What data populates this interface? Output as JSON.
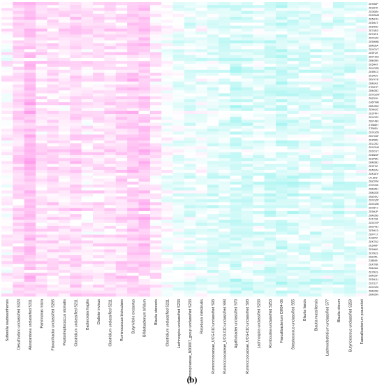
{
  "panel_label": "(b)",
  "chart_data": {
    "type": "heatmap",
    "colormap": {
      "low": "#3ee8e0",
      "mid": "#ffffff",
      "high": "#ff5fe0"
    },
    "columns": [
      "Sutterella wadsworthensis",
      "Desulfovibrio unclassified S323",
      "Alloscardovia unclassified S311",
      "Parvimonas micra",
      "Flavonifractor unclassified S265",
      "Peptostreptococcus stomatis",
      "Clostridium unclassified S211",
      "Bacteroides fragilis",
      "Dialister invisus",
      "Clostridium unclassified S211",
      "Ruminococcus bicirculans",
      "Butyrivibrio crossotus",
      "Bifidobacterium bifidum",
      "Blautia stercoris",
      "Clostridium unclassified S211",
      "Lachnospira unclassified S233",
      "Lachnospiraceae_ND3007_group unclassified S233",
      "Roseburia intestinalis",
      "Ruminococcaceae_UCG-010 unclassified S93",
      "Ruminococcaceae_UCG-010 unclassified S93",
      "Agathobacter unclassified S70",
      "Ruminococcaceae_UCG-010 unclassified S93",
      "Lachnospira unclassified S233",
      "Romboutsia unclassified S253",
      "Faecalibacterium CM04-06",
      "Streptococcus unclassified S55",
      "Blautia faecis",
      "Blautia massiliensis",
      "Lachnoclostridium unclassified S77",
      "Blautia obeum",
      "Butyricicoccus unclassified S259",
      "Faecalibacterium prausnitzii"
    ],
    "rows": [
      "ZE9H8P",
      "ZE9H7K",
      "ZD3K8N",
      "ZD2WM9",
      "ZE5H7N",
      "ZE5H4T",
      "ZE5H9D",
      "ZE7UB3",
      "ZE7UF4",
      "ZDXGZ3",
      "ZE5HMB",
      "ZBMJ5A",
      "ZDXGYT",
      "ZE5FLH",
      "ZBYHAG",
      "ZBMJ5N",
      "ZE5HAT",
      "ZDXGZD",
      "ZE8HC3",
      "ZE9H3V",
      "ZBYXY8",
      "ZBMJ4Z",
      "Z7BG7P",
      "ZBMJ5D",
      "ZDXGZW",
      "ZBZ3YK",
      "ZA6YNM",
      "ZBKJHM",
      "ZEHNJC",
      "ZE2FPH",
      "ZDXGZ2",
      "ZBYHN3",
      "Z7B8EH",
      "Z7B6EV",
      "ZDXGZN",
      "ZBYXMF",
      "ZEK5PE",
      "ZELC9D",
      "ZDXGNK",
      "ZD0CGT",
      "ZD6NNP",
      "ZE2P8N",
      "ZBMJ6D",
      "ZE9T9C",
      "ZFA6VN",
      "ZDK1E9",
      "LTL8H8",
      "ZBZ3VM",
      "ZSYD5K",
      "ZBMJ5H",
      "ZBMJGE",
      "ZBZ0SU",
      "ZDXGZP",
      "ZDXGZB",
      "ZDX8YJ",
      "ZE5HJP",
      "ZBMJ5B",
      "ZC1Y38",
      "ZDXGYP",
      "ZBCPBJ",
      "ZE5HC0",
      "ZBYF7J",
      "ZA38TZ",
      "ZEKTS0",
      "ZE5H6P",
      "ZE9H60",
      "ZE7BLS",
      "ZBZ3RL",
      "Z38B95",
      "ZEKT9B",
      "ZBMJ66",
      "ZE7BLS",
      "ZBMJ3F",
      "ZE5HJU",
      "ZDX1J7",
      "ZDXGZ0",
      "ZBMJ9B",
      "ZBMJ5N"
    ],
    "column_tendency": [
      0.15,
      0.55,
      0.85,
      0.4,
      0.45,
      0.35,
      0.55,
      0.3,
      0.35,
      0.4,
      0.5,
      0.65,
      0.7,
      0.3,
      0.0,
      -0.2,
      -0.25,
      -0.2,
      -0.35,
      -0.35,
      -0.55,
      -0.4,
      -0.3,
      -0.4,
      -0.5,
      -0.4,
      -0.35,
      -0.35,
      -0.3,
      -0.4,
      -0.3,
      -0.25
    ],
    "value_range": [
      -1,
      1
    ],
    "n_rows_rendered": 100,
    "xlabel": "",
    "ylabel": ""
  }
}
